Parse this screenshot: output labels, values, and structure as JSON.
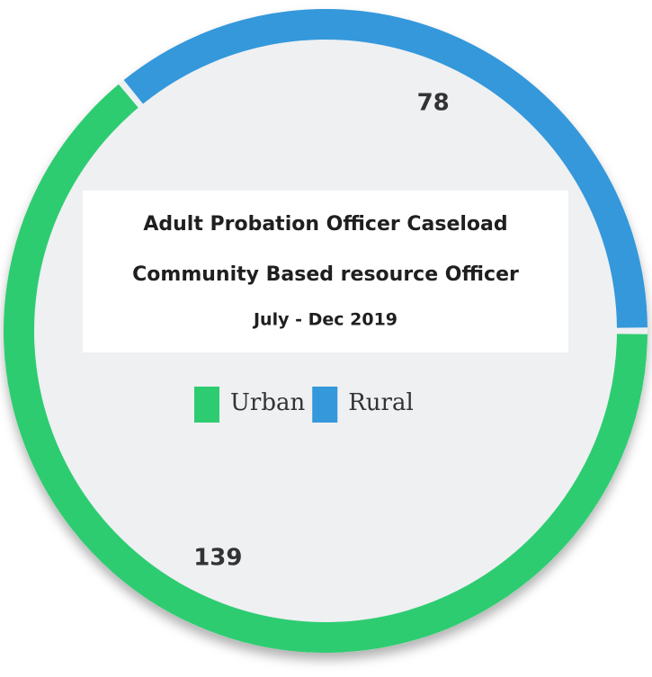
{
  "chart_data": {
    "type": "donut",
    "title": [
      "Adult Probation Officer Caseload",
      "Community Based resource Officer",
      "July - Dec 2019"
    ],
    "categories": [
      "Urban",
      "Rural"
    ],
    "values": [
      139,
      78
    ],
    "colors": [
      "#2ecc71",
      "#3498db"
    ],
    "legend": "center"
  }
}
